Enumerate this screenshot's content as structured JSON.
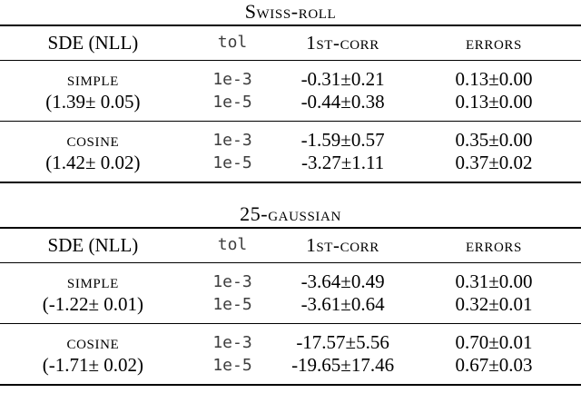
{
  "colors": {
    "background": "#ffffff",
    "text": "#000000",
    "rule": "#000000",
    "mono_text": "#3e3e3e"
  },
  "tables": [
    {
      "title": "Swiss-roll",
      "columns": [
        "SDE (NLL)",
        "tol",
        "1st-corr",
        "errors"
      ],
      "groups": [
        {
          "sde": "simple",
          "nll": "(1.39± 0.05)",
          "rows": [
            {
              "tol": "1e-3",
              "corr": "-0.31±0.21",
              "errors": "0.13±0.00"
            },
            {
              "tol": "1e-5",
              "corr": "-0.44±0.38",
              "errors": "0.13±0.00"
            }
          ]
        },
        {
          "sde": "cosine",
          "nll": "(1.42± 0.02)",
          "rows": [
            {
              "tol": "1e-3",
              "corr": "-1.59±0.57",
              "errors": "0.35±0.00"
            },
            {
              "tol": "1e-5",
              "corr": "-3.27±1.11",
              "errors": "0.37±0.02"
            }
          ]
        }
      ]
    },
    {
      "title": "25-gaussian",
      "columns": [
        "SDE (NLL)",
        "tol",
        "1st-corr",
        "errors"
      ],
      "groups": [
        {
          "sde": "simple",
          "nll": "(-1.22± 0.01)",
          "rows": [
            {
              "tol": "1e-3",
              "corr": "-3.64±0.49",
              "errors": "0.31±0.00"
            },
            {
              "tol": "1e-5",
              "corr": "-3.61±0.64",
              "errors": "0.32±0.01"
            }
          ]
        },
        {
          "sde": "cosine",
          "nll": "(-1.71± 0.02)",
          "rows": [
            {
              "tol": "1e-3",
              "corr": "-17.57±5.56",
              "errors": "0.70±0.01"
            },
            {
              "tol": "1e-5",
              "corr": "-19.65±17.46",
              "errors": "0.67±0.03"
            }
          ]
        }
      ]
    }
  ]
}
